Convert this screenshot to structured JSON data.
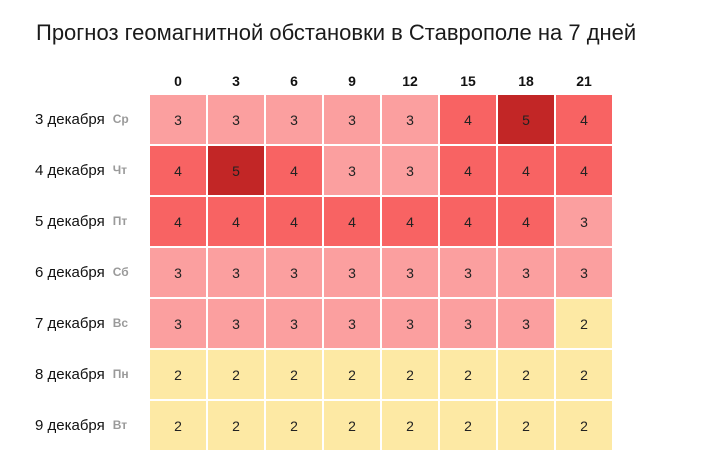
{
  "title": "Прогноз геомагнитной обстановки в Ставрополе на 7 дней",
  "colors": {
    "2": "#fde9a4",
    "3": "#fb9f9f",
    "4": "#f86363",
    "5": "#c22626"
  },
  "chart_data": {
    "type": "heatmap",
    "title": "Прогноз геомагнитной обстановки в Ставрополе на 7 дней",
    "x": [
      "0",
      "3",
      "6",
      "9",
      "12",
      "15",
      "18",
      "21"
    ],
    "rows": [
      {
        "date": "3 декабря",
        "dow": "Ср",
        "values": [
          3,
          3,
          3,
          3,
          3,
          4,
          5,
          4
        ]
      },
      {
        "date": "4 декабря",
        "dow": "Чт",
        "values": [
          4,
          5,
          4,
          3,
          3,
          4,
          4,
          4
        ]
      },
      {
        "date": "5 декабря",
        "dow": "Пт",
        "values": [
          4,
          4,
          4,
          4,
          4,
          4,
          4,
          3
        ]
      },
      {
        "date": "6 декабря",
        "dow": "Сб",
        "values": [
          3,
          3,
          3,
          3,
          3,
          3,
          3,
          3
        ]
      },
      {
        "date": "7 декабря",
        "dow": "Вс",
        "values": [
          3,
          3,
          3,
          3,
          3,
          3,
          3,
          2
        ]
      },
      {
        "date": "8 декабря",
        "dow": "Пн",
        "values": [
          2,
          2,
          2,
          2,
          2,
          2,
          2,
          2
        ]
      },
      {
        "date": "9 декабря",
        "dow": "Вт",
        "values": [
          2,
          2,
          2,
          2,
          2,
          2,
          2,
          2
        ]
      }
    ]
  }
}
